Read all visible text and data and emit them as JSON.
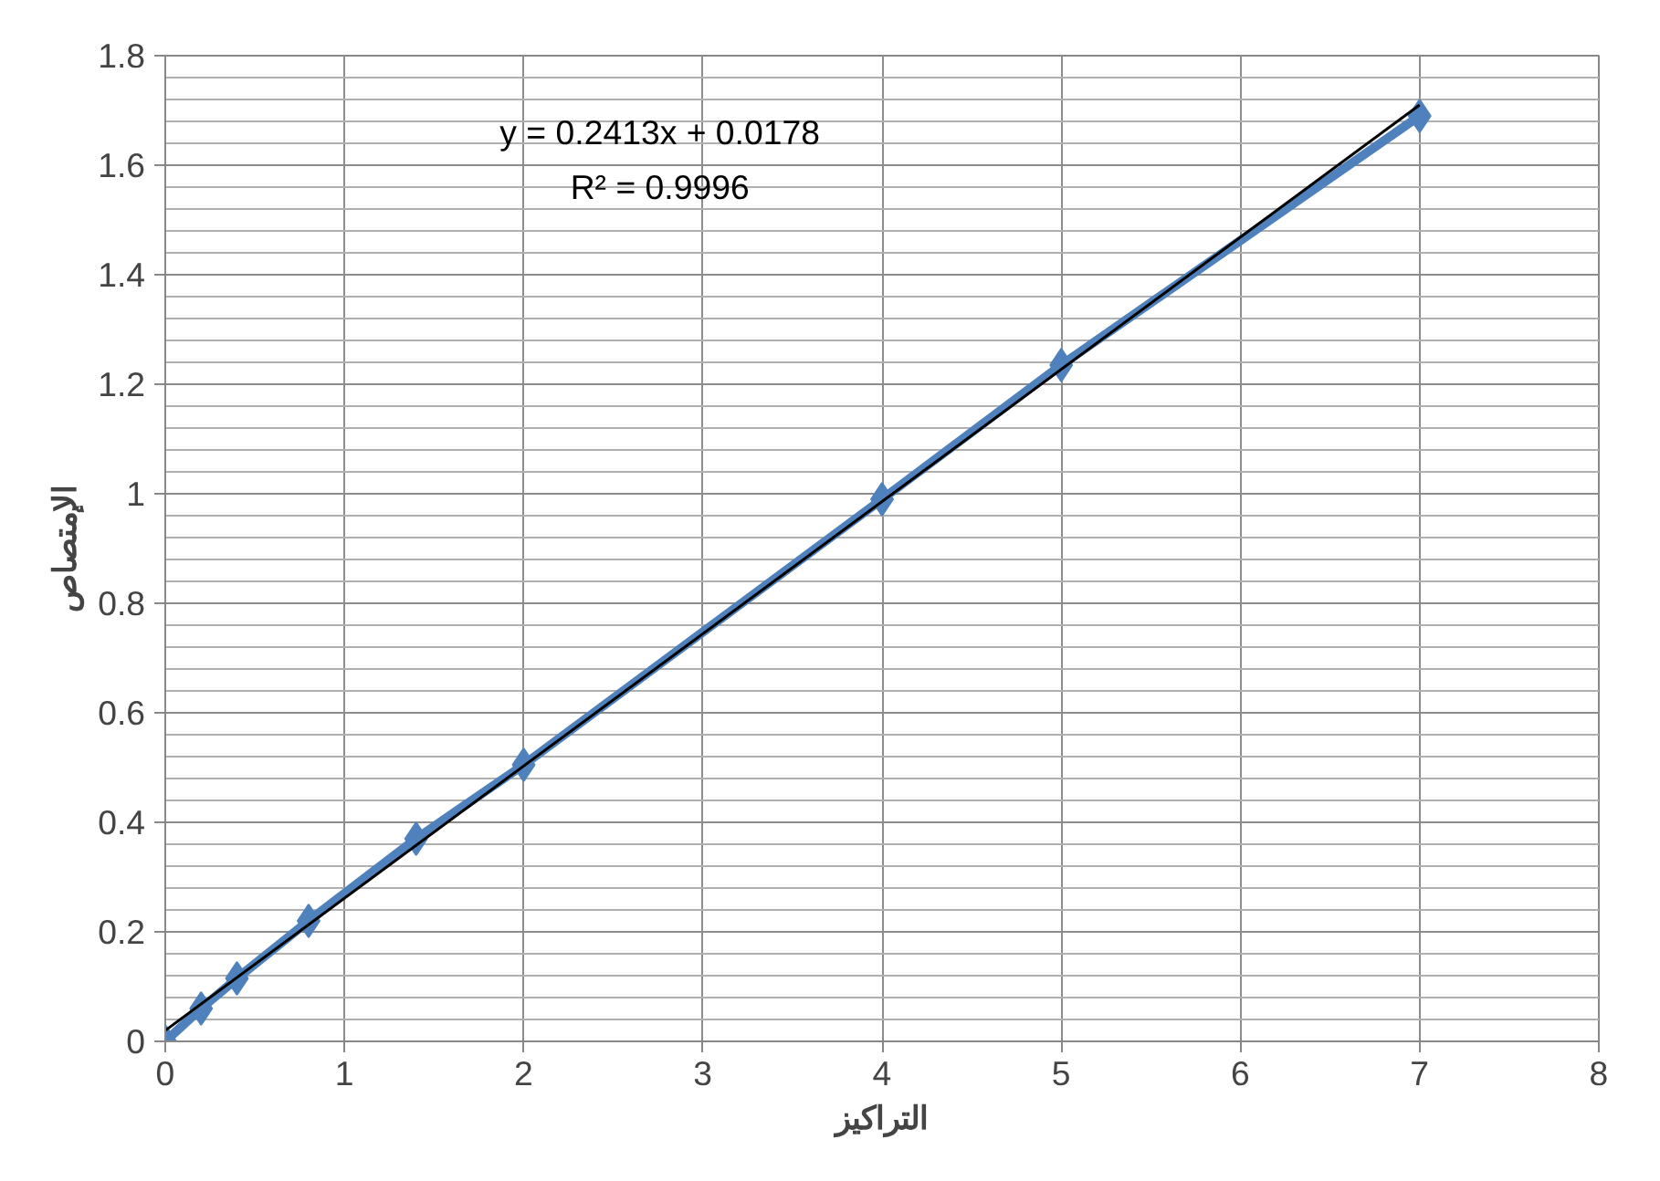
{
  "chart_data": {
    "type": "line",
    "xlabel": "التراكيز",
    "ylabel": "الإمتصاص",
    "annotations": [
      "y = 0.2413x + 0.0178",
      "R² = 0.9996"
    ],
    "series": [
      {
        "color": "#4f81bd",
        "x": [
          0,
          0.2,
          0.4,
          0.8,
          1.4,
          2,
          4,
          5,
          7
        ],
        "values": [
          0,
          0.06,
          0.115,
          0.22,
          0.37,
          0.505,
          0.99,
          1.235,
          1.69
        ],
        "marker": "diamond"
      },
      {
        "type": "line",
        "color": "#000000",
        "x": [
          0,
          7
        ],
        "values": [
          0.02,
          1.71
        ],
        "marker": "none"
      }
    ],
    "xlim": [
      0,
      8
    ],
    "ylim": [
      0,
      1.8
    ],
    "xticks": [
      0,
      1,
      2,
      3,
      4,
      5,
      6,
      7,
      8
    ],
    "yticks": [
      0,
      0.2,
      0.4,
      0.6,
      0.8,
      1,
      1.2,
      1.4,
      1.6,
      1.8
    ],
    "grid": true
  }
}
